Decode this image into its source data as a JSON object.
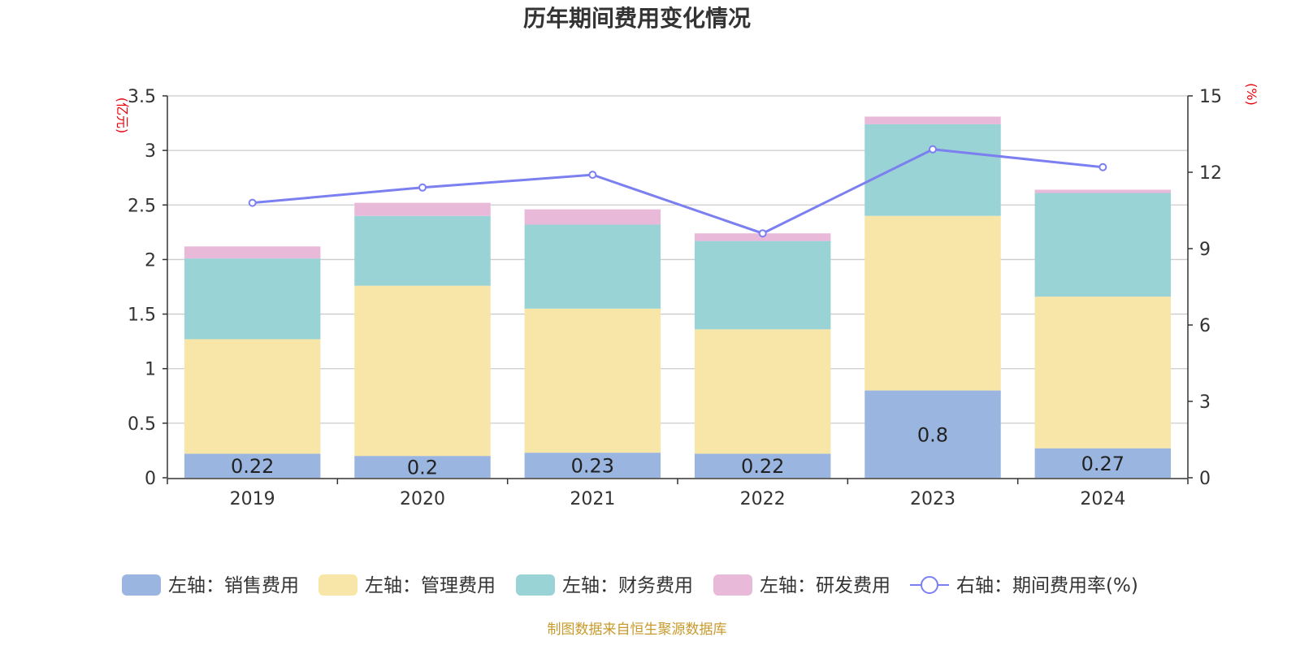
{
  "chart_data": {
    "type": "bar",
    "title": "历年期间费用变化情况",
    "categories": [
      "2019",
      "2020",
      "2021",
      "2022",
      "2023",
      "2024"
    ],
    "y_left": {
      "unit_label": "(亿元)",
      "ticks": [
        "0",
        "0.5",
        "1",
        "1.5",
        "2",
        "2.5",
        "3",
        "3.5"
      ],
      "range": [
        0,
        3.5
      ]
    },
    "y_right": {
      "unit_label": "(%)",
      "ticks": [
        "0",
        "3",
        "6",
        "9",
        "12",
        "15"
      ],
      "range": [
        0,
        15
      ]
    },
    "grid": true,
    "legend_position": "bottom",
    "series": [
      {
        "name": "左轴：销售费用",
        "type": "bar",
        "axis": "left",
        "color": "#9ab6e0",
        "values": [
          0.22,
          0.2,
          0.23,
          0.22,
          0.8,
          0.27
        ],
        "data_labels": [
          "0.22",
          "0.2",
          "0.23",
          "0.22",
          "0.8",
          "0.27"
        ]
      },
      {
        "name": "左轴：管理费用",
        "type": "bar",
        "axis": "left",
        "color": "#f8e6a8",
        "values": [
          1.05,
          1.56,
          1.32,
          1.14,
          1.6,
          1.39
        ]
      },
      {
        "name": "左轴：财务费用",
        "type": "bar",
        "axis": "left",
        "color": "#99d3d5",
        "values": [
          0.74,
          0.64,
          0.77,
          0.81,
          0.84,
          0.95
        ]
      },
      {
        "name": "左轴：研发费用",
        "type": "bar",
        "axis": "left",
        "color": "#e9b9da",
        "values": [
          0.11,
          0.12,
          0.14,
          0.07,
          0.07,
          0.03
        ]
      },
      {
        "name": "右轴：期间费用率(%)",
        "type": "line",
        "axis": "right",
        "color": "#7b7ff0",
        "values": [
          10.8,
          11.4,
          11.9,
          9.6,
          12.9,
          12.2
        ]
      }
    ],
    "source": "制图数据来自恒生聚源数据库"
  }
}
